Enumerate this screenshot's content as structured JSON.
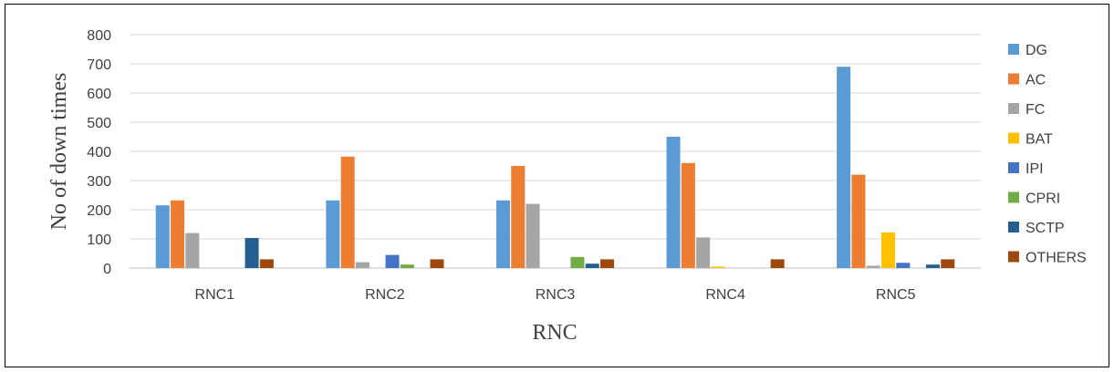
{
  "chart_data": {
    "type": "bar",
    "title": "",
    "xlabel": "RNC",
    "ylabel": "No of down times",
    "ylim": [
      0,
      800
    ],
    "yticks": [
      0,
      100,
      200,
      300,
      400,
      500,
      600,
      700,
      800
    ],
    "grid": true,
    "legend_position": "right",
    "categories": [
      "RNC1",
      "RNC2",
      "RNC3",
      "RNC4",
      "RNC5"
    ],
    "series": [
      {
        "name": "DG",
        "color": "#5B9BD5",
        "values": [
          215,
          232,
          232,
          450,
          690
        ]
      },
      {
        "name": "AC",
        "color": "#ED7D31",
        "values": [
          232,
          382,
          350,
          360,
          320
        ]
      },
      {
        "name": "FC",
        "color": "#A5A5A5",
        "values": [
          120,
          20,
          220,
          105,
          8
        ]
      },
      {
        "name": "BAT",
        "color": "#FFC000",
        "values": [
          0,
          0,
          0,
          5,
          122
        ]
      },
      {
        "name": "IPI",
        "color": "#4472C4",
        "values": [
          0,
          45,
          0,
          0,
          18
        ]
      },
      {
        "name": "CPRI",
        "color": "#70AD47",
        "values": [
          0,
          12,
          38,
          0,
          0
        ]
      },
      {
        "name": "SCTP",
        "color": "#255E91",
        "values": [
          103,
          0,
          15,
          0,
          12
        ]
      },
      {
        "name": "OTHERS",
        "color": "#9E480E",
        "values": [
          30,
          30,
          30,
          30,
          30
        ]
      }
    ]
  }
}
